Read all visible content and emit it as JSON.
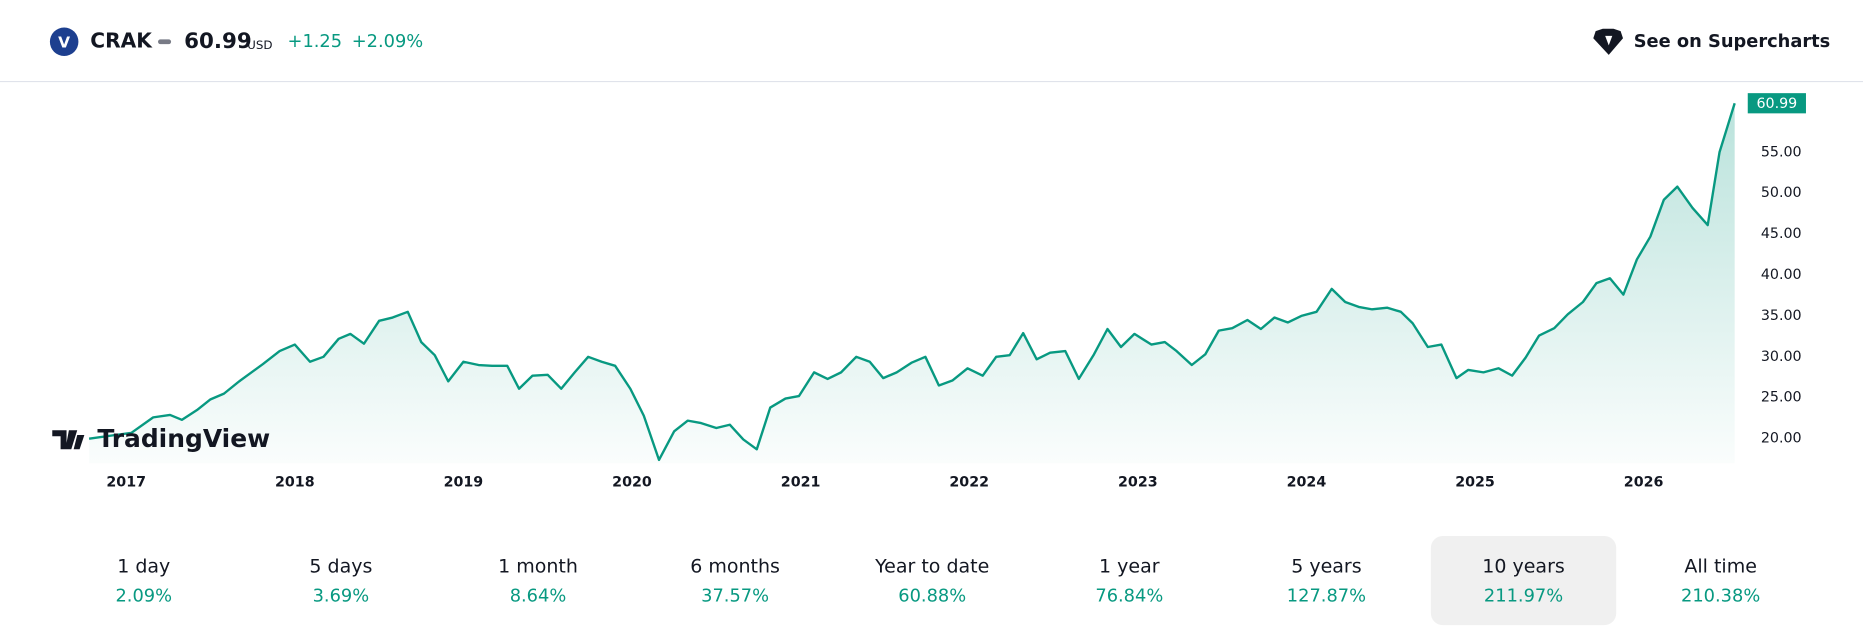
{
  "header": {
    "symbol": "CRAK",
    "logo_letter": "V",
    "price": "60.99",
    "currency": "USD",
    "change": "+1.25",
    "change_percent": "+2.09%",
    "link": "See on Supercharts"
  },
  "watermark": "TradingView",
  "chart_data": {
    "type": "line",
    "last_value_label": "60.99",
    "x": [
      2016.78,
      2016.92,
      2017.03,
      2017.16,
      2017.26,
      2017.33,
      2017.42,
      2017.5,
      2017.58,
      2017.67,
      2017.81,
      2017.91,
      2018.0,
      2018.09,
      2018.17,
      2018.26,
      2018.33,
      2018.41,
      2018.5,
      2018.58,
      2018.67,
      2018.75,
      2018.83,
      2018.91,
      2019.0,
      2019.09,
      2019.17,
      2019.26,
      2019.33,
      2019.41,
      2019.5,
      2019.58,
      2019.66,
      2019.74,
      2019.82,
      2019.9,
      2019.99,
      2020.07,
      2020.16,
      2020.25,
      2020.33,
      2020.41,
      2020.5,
      2020.58,
      2020.66,
      2020.74,
      2020.82,
      2020.91,
      2020.99,
      2021.08,
      2021.16,
      2021.24,
      2021.33,
      2021.41,
      2021.49,
      2021.57,
      2021.66,
      2021.74,
      2021.82,
      2021.9,
      2021.99,
      2022.08,
      2022.16,
      2022.24,
      2022.32,
      2022.4,
      2022.48,
      2022.57,
      2022.65,
      2022.74,
      2022.82,
      2022.9,
      2022.98,
      2023.08,
      2023.16,
      2023.23,
      2023.32,
      2023.4,
      2023.48,
      2023.56,
      2023.65,
      2023.73,
      2023.81,
      2023.89,
      2023.97,
      2024.06,
      2024.15,
      2024.23,
      2024.31,
      2024.39,
      2024.48,
      2024.56,
      2024.63,
      2024.72,
      2024.8,
      2024.89,
      2024.96,
      2025.05,
      2025.14,
      2025.22,
      2025.3,
      2025.38,
      2025.47,
      2025.55,
      2025.64,
      2025.72,
      2025.8,
      2025.88,
      2025.96,
      2026.04,
      2026.12,
      2026.2,
      2026.29,
      2026.38,
      2026.45,
      2026.54
    ],
    "series": [
      {
        "name": "CRAK",
        "color": "#089981",
        "values": [
          20.0,
          20.4,
          20.7,
          22.6,
          22.9,
          22.3,
          23.5,
          24.8,
          25.5,
          27.0,
          29.1,
          30.7,
          31.5,
          29.4,
          30.0,
          32.2,
          32.8,
          31.6,
          34.4,
          34.8,
          35.5,
          31.8,
          30.2,
          27.0,
          29.4,
          29.0,
          28.9,
          28.9,
          26.1,
          27.7,
          27.8,
          26.1,
          28.1,
          30.0,
          29.4,
          28.9,
          26.1,
          22.8,
          17.4,
          20.9,
          22.2,
          21.9,
          21.3,
          21.7,
          19.9,
          18.7,
          23.8,
          24.9,
          25.2,
          28.1,
          27.3,
          28.1,
          30.0,
          29.4,
          27.4,
          28.1,
          29.3,
          30.0,
          26.5,
          27.1,
          28.6,
          27.7,
          30.0,
          30.2,
          32.9,
          29.7,
          30.5,
          30.7,
          27.3,
          30.3,
          33.4,
          31.2,
          32.8,
          31.5,
          31.8,
          30.7,
          29.0,
          30.3,
          33.2,
          33.5,
          34.5,
          33.4,
          34.8,
          34.2,
          35.0,
          35.5,
          38.3,
          36.7,
          36.1,
          35.8,
          36.0,
          35.5,
          34.1,
          31.2,
          31.5,
          27.4,
          28.4,
          28.1,
          28.6,
          27.7,
          29.9,
          32.6,
          33.5,
          35.2,
          36.7,
          39.0,
          39.6,
          37.6,
          41.9,
          44.7,
          49.2,
          50.8,
          48.2,
          46.1,
          55.0,
          60.99
        ]
      }
    ],
    "xlim": [
      2016.78,
      2026.54
    ],
    "xticks": [
      2017,
      2018,
      2019,
      2020,
      2021,
      2022,
      2023,
      2024,
      2025,
      2026
    ],
    "ylim": [
      17,
      62
    ],
    "yticks": [
      {
        "value": 20,
        "label": "20.00"
      },
      {
        "value": 25,
        "label": "25.00"
      },
      {
        "value": 30,
        "label": "30.00"
      },
      {
        "value": 35,
        "label": "35.00"
      },
      {
        "value": 40,
        "label": "40.00"
      },
      {
        "value": 45,
        "label": "45.00"
      },
      {
        "value": 50,
        "label": "50.00"
      },
      {
        "value": 55,
        "label": "55.00"
      }
    ]
  },
  "periods": [
    {
      "label": "1 day",
      "value": "2.09%"
    },
    {
      "label": "5 days",
      "value": "3.69%"
    },
    {
      "label": "1 month",
      "value": "8.64%"
    },
    {
      "label": "6 months",
      "value": "37.57%"
    },
    {
      "label": "Year to date",
      "value": "60.88%"
    },
    {
      "label": "1 year",
      "value": "76.84%"
    },
    {
      "label": "5 years",
      "value": "127.87%"
    },
    {
      "label": "10 years",
      "value": "211.97%",
      "selected": true
    },
    {
      "label": "All time",
      "value": "210.38%"
    }
  ]
}
